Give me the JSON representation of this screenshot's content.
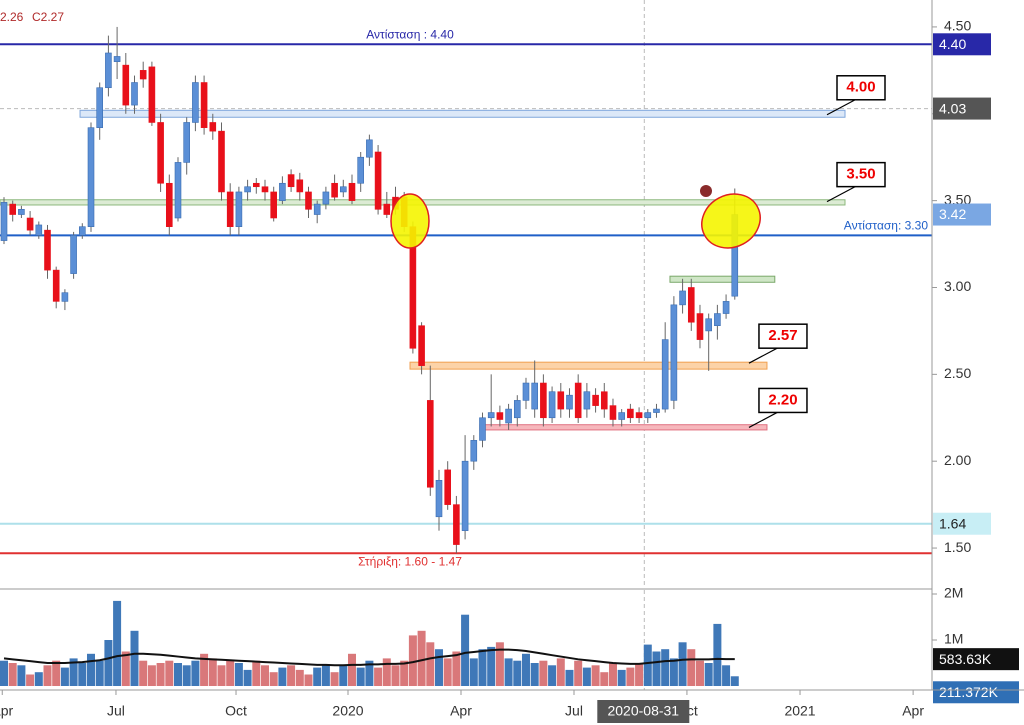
{
  "chart_data": {
    "type": "candlestick",
    "header": [
      "2.26",
      "C2.27"
    ],
    "x": [
      0,
      1,
      2,
      3,
      4,
      5,
      6,
      7,
      8,
      9,
      10,
      11,
      12,
      13,
      14,
      15,
      16,
      17,
      18,
      19,
      20,
      21,
      22,
      23,
      24,
      25,
      26,
      27,
      28,
      29,
      30,
      31,
      32,
      33,
      34,
      35,
      36,
      37,
      38,
      39,
      40,
      41,
      42,
      43,
      44,
      45,
      46,
      47,
      48,
      49,
      50,
      51,
      52,
      53,
      54,
      55,
      56,
      57,
      58,
      59,
      60,
      61,
      62,
      63,
      64,
      65,
      66,
      67,
      68,
      69,
      70,
      71,
      72,
      73,
      74,
      75,
      76,
      77,
      78,
      79,
      80,
      81,
      82,
      83,
      84
    ],
    "ohlc": [
      [
        3.27,
        3.52,
        3.25,
        3.49
      ],
      [
        3.48,
        3.5,
        3.38,
        3.42
      ],
      [
        3.42,
        3.47,
        3.4,
        3.45
      ],
      [
        3.4,
        3.44,
        3.3,
        3.33
      ],
      [
        3.3,
        3.38,
        3.28,
        3.36
      ],
      [
        3.33,
        3.36,
        3.05,
        3.1
      ],
      [
        3.1,
        3.12,
        2.88,
        2.92
      ],
      [
        2.92,
        2.99,
        2.87,
        2.97
      ],
      [
        3.08,
        3.32,
        3.05,
        3.3
      ],
      [
        3.3,
        3.37,
        3.28,
        3.35
      ],
      [
        3.35,
        3.95,
        3.32,
        3.92
      ],
      [
        3.92,
        4.18,
        3.85,
        4.15
      ],
      [
        4.15,
        4.45,
        4.1,
        4.35
      ],
      [
        4.3,
        4.5,
        4.2,
        4.33
      ],
      [
        4.28,
        4.35,
        4.0,
        4.05
      ],
      [
        4.05,
        4.22,
        4.0,
        4.18
      ],
      [
        4.25,
        4.3,
        4.15,
        4.2
      ],
      [
        4.27,
        4.3,
        3.93,
        3.95
      ],
      [
        3.95,
        4.0,
        3.55,
        3.6
      ],
      [
        3.6,
        3.65,
        3.3,
        3.35
      ],
      [
        3.4,
        3.75,
        3.38,
        3.72
      ],
      [
        3.72,
        3.98,
        3.65,
        3.95
      ],
      [
        3.95,
        4.22,
        3.9,
        4.18
      ],
      [
        4.18,
        4.22,
        3.88,
        3.92
      ],
      [
        3.95,
        4.0,
        3.85,
        3.9
      ],
      [
        3.9,
        3.95,
        3.5,
        3.55
      ],
      [
        3.55,
        3.6,
        3.3,
        3.35
      ],
      [
        3.35,
        3.58,
        3.3,
        3.55
      ],
      [
        3.55,
        3.62,
        3.5,
        3.58
      ],
      [
        3.6,
        3.63,
        3.54,
        3.58
      ],
      [
        3.58,
        3.62,
        3.5,
        3.55
      ],
      [
        3.55,
        3.58,
        3.38,
        3.4
      ],
      [
        3.5,
        3.64,
        3.48,
        3.6
      ],
      [
        3.65,
        3.68,
        3.55,
        3.58
      ],
      [
        3.62,
        3.66,
        3.5,
        3.55
      ],
      [
        3.55,
        3.58,
        3.4,
        3.45
      ],
      [
        3.42,
        3.5,
        3.37,
        3.48
      ],
      [
        3.48,
        3.58,
        3.45,
        3.55
      ],
      [
        3.6,
        3.65,
        3.5,
        3.52
      ],
      [
        3.55,
        3.62,
        3.52,
        3.58
      ],
      [
        3.6,
        3.65,
        3.48,
        3.5
      ],
      [
        3.6,
        3.78,
        3.55,
        3.75
      ],
      [
        3.75,
        3.88,
        3.7,
        3.85
      ],
      [
        3.78,
        3.82,
        3.42,
        3.45
      ],
      [
        3.48,
        3.55,
        3.4,
        3.42
      ],
      [
        3.52,
        3.58,
        3.42,
        3.45
      ],
      [
        3.52,
        3.55,
        3.32,
        3.35
      ],
      [
        3.35,
        3.38,
        2.62,
        2.65
      ],
      [
        2.78,
        2.8,
        2.5,
        2.55
      ],
      [
        2.35,
        2.55,
        1.8,
        1.85
      ],
      [
        1.68,
        1.95,
        1.6,
        1.89
      ],
      [
        1.95,
        2.0,
        1.72,
        1.75
      ],
      [
        1.75,
        1.8,
        1.47,
        1.52
      ],
      [
        1.6,
        2.15,
        1.55,
        2.0
      ],
      [
        2.0,
        2.15,
        1.95,
        2.12
      ],
      [
        2.12,
        2.28,
        2.08,
        2.25
      ],
      [
        2.25,
        2.5,
        2.2,
        2.28
      ],
      [
        2.28,
        2.32,
        2.2,
        2.24
      ],
      [
        2.22,
        2.33,
        2.18,
        2.3
      ],
      [
        2.25,
        2.38,
        2.2,
        2.35
      ],
      [
        2.35,
        2.48,
        2.3,
        2.45
      ],
      [
        2.3,
        2.58,
        2.25,
        2.45
      ],
      [
        2.45,
        2.5,
        2.2,
        2.25
      ],
      [
        2.25,
        2.43,
        2.22,
        2.4
      ],
      [
        2.4,
        2.45,
        2.25,
        2.3
      ],
      [
        2.3,
        2.42,
        2.25,
        2.38
      ],
      [
        2.45,
        2.5,
        2.22,
        2.25
      ],
      [
        2.3,
        2.45,
        2.25,
        2.4
      ],
      [
        2.38,
        2.42,
        2.28,
        2.32
      ],
      [
        2.4,
        2.45,
        2.25,
        2.3
      ],
      [
        2.32,
        2.36,
        2.2,
        2.24
      ],
      [
        2.24,
        2.3,
        2.2,
        2.28
      ],
      [
        2.3,
        2.33,
        2.22,
        2.25
      ],
      [
        2.28,
        2.31,
        2.22,
        2.25
      ],
      [
        2.25,
        2.3,
        2.22,
        2.28
      ],
      [
        2.28,
        2.33,
        2.25,
        2.3
      ],
      [
        2.3,
        2.8,
        2.28,
        2.7
      ],
      [
        2.35,
        2.95,
        2.3,
        2.9
      ],
      [
        2.9,
        3.05,
        2.85,
        2.98
      ],
      [
        3.0,
        3.05,
        2.75,
        2.8
      ],
      [
        2.85,
        2.9,
        2.65,
        2.7
      ],
      [
        2.75,
        2.85,
        2.52,
        2.82
      ],
      [
        2.78,
        2.9,
        2.7,
        2.85
      ],
      [
        2.85,
        2.96,
        2.82,
        2.92
      ],
      [
        2.95,
        3.57,
        2.93,
        3.42
      ]
    ],
    "up_color": "#5b8fd6",
    "down_color": "#e8101a",
    "xlim": [
      -0.46,
      106.67
    ],
    "xticks": [
      {
        "value": -0.2,
        "label": "Apr"
      },
      {
        "value": 12.87,
        "label": "Jul"
      },
      {
        "value": 26.67,
        "label": "Oct"
      },
      {
        "value": 39.54,
        "label": "2020"
      },
      {
        "value": 52.53,
        "label": "Apr"
      },
      {
        "value": 65.52,
        "label": "Jul"
      },
      {
        "value": 78.5,
        "label": "Oct"
      },
      {
        "value": 91.5,
        "label": "2021"
      },
      {
        "value": 104.5,
        "label": "Apr"
      }
    ],
    "ylim": [
      1.27,
      4.655
    ],
    "yticks": [
      {
        "value": 1.5,
        "label": "1.50"
      },
      {
        "value": 2.0,
        "label": "2.00"
      },
      {
        "value": 2.5,
        "label": "2.50"
      },
      {
        "value": 3.0,
        "label": "3.00"
      },
      {
        "value": 3.5,
        "label": "3.50"
      },
      {
        "value": 4.0,
        "label": "4.00"
      },
      {
        "value": 4.5,
        "label": "4.50"
      }
    ],
    "levels": [
      {
        "value": 4.4,
        "color": "#2828a8",
        "label": "Αντίσταση : 4.40"
      },
      {
        "value": 3.3,
        "color": "#1f5fc8",
        "label": "Αντίσταση: 3.30"
      },
      {
        "value": 1.64,
        "color": "#aee0ea"
      },
      {
        "value": 1.47,
        "color": "#e03030",
        "label": "Στήριξη: 1.60 - 1.47"
      }
    ],
    "zones": [
      {
        "from": 3.98,
        "to": 4.02,
        "x0": 8.74,
        "x1": 96.67,
        "fill": "#dce8f8",
        "stroke": "#7fa6dc",
        "callout": {
          "value": 4.0,
          "label": "4.00"
        }
      },
      {
        "from": 3.475,
        "to": 3.505,
        "x0": -0.46,
        "x1": 96.67,
        "fill": "#dcebd4",
        "stroke": "#8cb87c",
        "callout": {
          "value": 3.5,
          "label": "3.50"
        }
      },
      {
        "from": 3.03,
        "to": 3.065,
        "x0": 76.55,
        "x1": 88.6,
        "fill": "#cfe6c6",
        "stroke": "#7aa86a"
      },
      {
        "from": 2.53,
        "to": 2.57,
        "x0": 46.67,
        "x1": 87.7,
        "fill": "#fcd3a8",
        "stroke": "#f0a050",
        "callout": {
          "value": 2.57,
          "label": "2.57"
        }
      },
      {
        "from": 2.18,
        "to": 2.21,
        "x0": 54.7,
        "x1": 87.7,
        "fill": "#f6b7bc",
        "stroke": "#e07080",
        "callout": {
          "value": 2.2,
          "label": "2.20"
        }
      }
    ],
    "crosshair": {
      "x": 73.6,
      "value": 4.03,
      "x_label": "2020-08-31",
      "y_label": "4.03"
    },
    "badges": [
      {
        "value": 4.4,
        "label": "4.40",
        "color": "#2828a8",
        "text_color": "#ffffff"
      },
      {
        "value": 3.42,
        "label": "3.42",
        "color": "#7aa7e3",
        "text_color": "#ffffff"
      },
      {
        "value": 1.64,
        "label": "1.64",
        "color": "#c8eef5",
        "text_color": "#222222"
      }
    ],
    "volume": {
      "values": [
        0.55,
        0.5,
        0.45,
        0.25,
        0.3,
        0.45,
        0.55,
        0.4,
        0.6,
        0.5,
        0.7,
        0.55,
        1.0,
        1.85,
        0.75,
        1.2,
        0.55,
        0.45,
        0.5,
        0.55,
        0.5,
        0.45,
        0.55,
        0.7,
        0.6,
        0.45,
        0.55,
        0.5,
        0.35,
        0.55,
        0.45,
        0.3,
        0.4,
        0.45,
        0.35,
        0.25,
        0.4,
        0.45,
        0.3,
        0.45,
        0.7,
        0.4,
        0.55,
        0.4,
        0.6,
        0.45,
        0.55,
        1.1,
        1.2,
        0.95,
        0.8,
        0.6,
        0.75,
        1.55,
        0.6,
        0.8,
        0.85,
        0.95,
        0.6,
        0.55,
        0.7,
        0.5,
        0.55,
        0.45,
        0.6,
        0.35,
        0.55,
        0.4,
        0.45,
        0.3,
        0.5,
        0.35,
        0.4,
        0.5,
        0.9,
        0.75,
        0.8,
        0.6,
        0.95,
        0.8,
        0.55,
        0.5,
        1.35,
        0.45,
        0.211372
      ],
      "ma": [
        0.6,
        0.58,
        0.56,
        0.54,
        0.52,
        0.5,
        0.5,
        0.5,
        0.51,
        0.52,
        0.54,
        0.56,
        0.6,
        0.65,
        0.67,
        0.7,
        0.7,
        0.69,
        0.68,
        0.66,
        0.64,
        0.62,
        0.6,
        0.59,
        0.58,
        0.57,
        0.56,
        0.55,
        0.54,
        0.53,
        0.52,
        0.51,
        0.5,
        0.49,
        0.48,
        0.47,
        0.46,
        0.46,
        0.45,
        0.45,
        0.46,
        0.46,
        0.47,
        0.47,
        0.48,
        0.48,
        0.49,
        0.52,
        0.56,
        0.6,
        0.63,
        0.65,
        0.67,
        0.72,
        0.74,
        0.76,
        0.78,
        0.79,
        0.79,
        0.78,
        0.76,
        0.73,
        0.7,
        0.67,
        0.64,
        0.61,
        0.58,
        0.56,
        0.54,
        0.52,
        0.5,
        0.49,
        0.48,
        0.48,
        0.5,
        0.52,
        0.54,
        0.55,
        0.57,
        0.58,
        0.58,
        0.58,
        0.59,
        0.585,
        0.58363
      ],
      "up_color": "#3f78b8",
      "down_color": "#d9787a",
      "ma_color": "#111111",
      "ylim": [
        -0.087,
        2.087
      ],
      "yticks": [
        {
          "value": 1,
          "label": "1M"
        },
        {
          "value": 2,
          "label": "2M"
        }
      ],
      "badges": [
        {
          "value": 0.58363,
          "label": "583.63K",
          "color": "#111111",
          "text_color": "#ffffff"
        },
        {
          "value": 0.211372,
          "label": "211.372K",
          "color": "#2f6fb5",
          "text_color": "#ffffff"
        }
      ]
    }
  }
}
